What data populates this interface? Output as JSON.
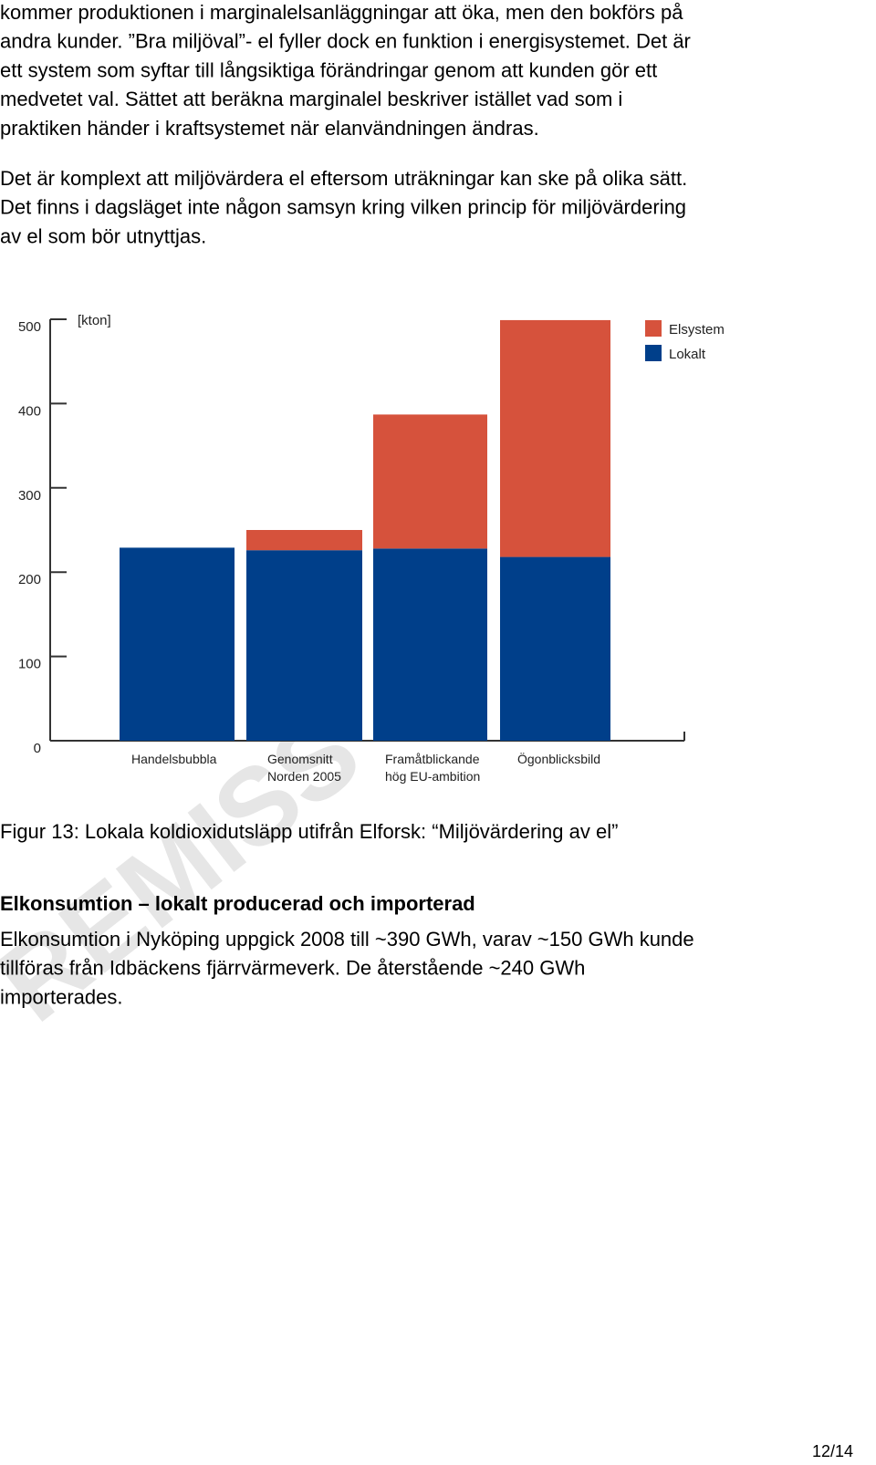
{
  "paragraphs": [
    {
      "lines": [
        "kommer produktionen i marginalelsanläggningar att öka, men den bokförs på",
        "andra kunder. ”Bra miljöval”- el fyller dock en funktion i energisystemet. Det är",
        "ett system som syftar till långsiktiga förändringar genom att kunden gör ett",
        "medvetet val. Sättet att beräkna marginalel beskriver istället vad som i",
        "praktiken händer i kraftsystemet när elanvändningen ändras."
      ]
    },
    {
      "lines": [
        "Det är komplext att miljövärdera el eftersom uträkningar kan ske på olika sätt.",
        "Det finns i dagsläget inte någon samsyn kring vilken princip för miljövärdering",
        "av el som bör utnyttjas."
      ]
    }
  ],
  "chart_data": {
    "type": "bar",
    "stacked": true,
    "y_label": "[kton]",
    "categories": [
      [
        "Handelsbubbla"
      ],
      [
        "Genomsnitt",
        "Norden 2005"
      ],
      [
        "Framåtblickande",
        "hög EU-ambition"
      ],
      [
        "Ögonblicksbild"
      ]
    ],
    "series": [
      {
        "name": "Elsystem",
        "color": "#d6523c",
        "values": [
          0,
          24,
          159,
          281
        ]
      },
      {
        "name": "Lokalt",
        "color": "#003f8a",
        "values": [
          229,
          226,
          228,
          218
        ]
      }
    ],
    "ylim": [
      0,
      500
    ],
    "yticks": [
      0,
      100,
      200,
      300,
      400,
      500
    ],
    "legend": "upper right"
  },
  "caption": "Figur 13: Lokala koldioxidutsläpp utifrån Elforsk: “Miljövärdering av el”",
  "heading": "Elkonsumtion – lokalt producerad och importerad",
  "body": {
    "lines": [
      "Elkonsumtion i Nyköping uppgick 2008 till ~390 GWh, varav ~150 GWh kunde",
      "tillföras från Idbäckens fjärrvärmeverk. De återstående ~240 GWh",
      "importerades."
    ]
  },
  "watermark": "REMISS",
  "page_number": "12/14"
}
